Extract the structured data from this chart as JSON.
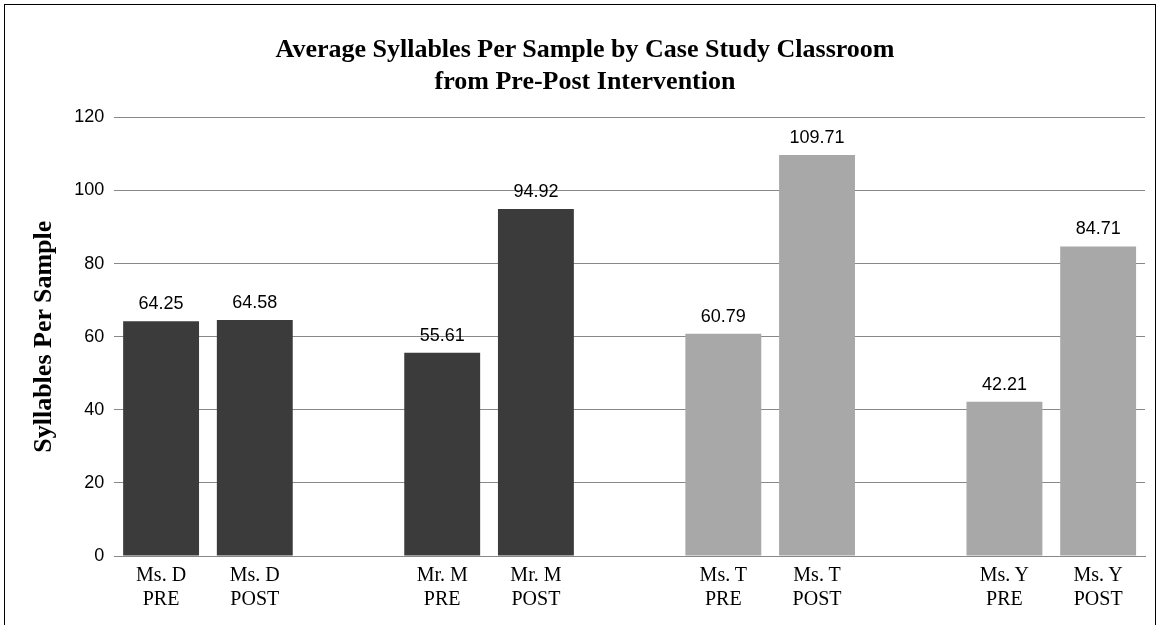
{
  "chart_data": {
    "type": "bar",
    "title": "Average Syllables Per Sample by Case Study Classroom\nfrom Pre-Post Intervention",
    "ylabel": "Syllables Per Sample",
    "categories": [
      "Ms. D\nPRE",
      "Ms. D\nPOST",
      null,
      "Mr. M\nPRE",
      "Mr. M\nPOST",
      null,
      "Ms. T\nPRE",
      "Ms. T\nPOST",
      null,
      "Ms. Y\nPRE",
      "Ms. Y\nPOST"
    ],
    "values": [
      64.25,
      64.58,
      null,
      55.61,
      94.92,
      null,
      60.79,
      109.71,
      null,
      42.21,
      84.71
    ],
    "colors": [
      "#3b3b3b",
      "#3b3b3b",
      "#3b3b3b",
      "#3b3b3b",
      "#3b3b3b",
      "#a8a8a8",
      "#a8a8a8",
      "#a8a8a8",
      "#a8a8a8",
      "#a8a8a8",
      "#a8a8a8"
    ],
    "ylim": [
      0,
      120
    ],
    "yticks": [
      0,
      20,
      40,
      60,
      80,
      100,
      120
    ],
    "grid": "y",
    "data_labels": true,
    "legend": false
  }
}
